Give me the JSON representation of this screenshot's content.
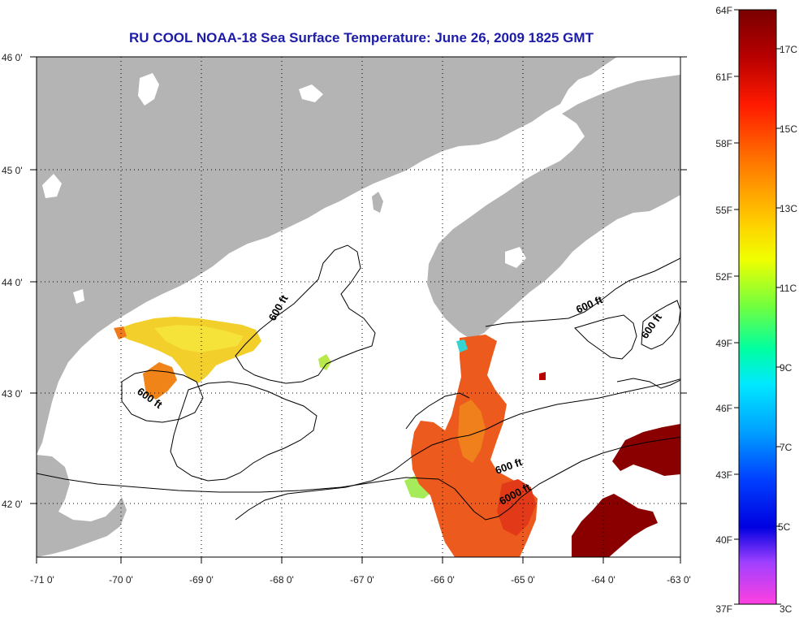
{
  "title": "RU COOL  NOAA-18  Sea Surface Temperature:  June 26, 2009 1825 GMT",
  "map": {
    "lon_ticks": [
      "-71 0'",
      "-70 0'",
      "-69 0'",
      "-68 0'",
      "-67 0'",
      "-66 0'",
      "-65 0'",
      "-64 0'",
      "-63 0'"
    ],
    "lat_ticks": [
      "46 0'",
      "45 0'",
      "44 0'",
      "43 0'",
      "42 0'"
    ],
    "extent": {
      "lon_min": -71,
      "lon_max": -63,
      "lat_min": 41.5,
      "lat_max": 46
    },
    "land_color": "#b4b4b4",
    "water_color": "#ffffff",
    "contour_labels": [
      "600 ft",
      "600 ft",
      "600 ft",
      "600 ft",
      "600 ft",
      "6000 ft"
    ]
  },
  "colorbar": {
    "fahrenheit": [
      "64F",
      "61F",
      "58F",
      "55F",
      "52F",
      "49F",
      "46F",
      "43F",
      "40F",
      "37F"
    ],
    "celsius": [
      "17C",
      "15C",
      "13C",
      "11C",
      "9C",
      "7C",
      "5C",
      "3C"
    ]
  }
}
